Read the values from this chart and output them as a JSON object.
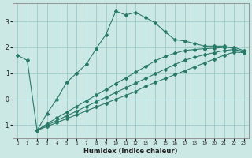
{
  "xlabel": "Humidex (Indice chaleur)",
  "bg_color": "#cce8e4",
  "line_color": "#2a7a6a",
  "grid_color": "#99cccc",
  "series1_x": [
    0,
    1,
    2,
    3,
    4,
    5,
    6,
    7,
    8,
    9,
    10,
    11,
    12,
    13,
    14,
    15,
    16,
    17,
    18,
    19,
    20,
    21,
    22,
    23
  ],
  "series1_y": [
    1.7,
    1.5,
    -1.2,
    -0.55,
    0.0,
    0.65,
    1.0,
    1.35,
    1.95,
    2.5,
    3.4,
    3.25,
    3.35,
    3.15,
    2.95,
    2.6,
    2.3,
    2.25,
    2.15,
    2.05,
    2.05,
    2.05,
    1.95,
    1.8
  ],
  "fan1_x": [
    2,
    3,
    4,
    5,
    6,
    7,
    8,
    9,
    10,
    11,
    12,
    13,
    14,
    15,
    16,
    17,
    18,
    19,
    20,
    21,
    22,
    23
  ],
  "fan1_y": [
    -1.2,
    -1.05,
    -0.9,
    -0.75,
    -0.6,
    -0.45,
    -0.3,
    -0.15,
    0.0,
    0.15,
    0.3,
    0.5,
    0.65,
    0.8,
    0.95,
    1.1,
    1.25,
    1.4,
    1.55,
    1.7,
    1.82,
    1.8
  ],
  "fan2_x": [
    2,
    3,
    4,
    5,
    6,
    7,
    8,
    9,
    10,
    11,
    12,
    13,
    14,
    15,
    16,
    17,
    18,
    19,
    20,
    21,
    22,
    23
  ],
  "fan2_y": [
    -1.2,
    -1.0,
    -0.82,
    -0.64,
    -0.46,
    -0.28,
    -0.1,
    0.08,
    0.26,
    0.44,
    0.62,
    0.8,
    0.98,
    1.16,
    1.34,
    1.5,
    1.62,
    1.72,
    1.8,
    1.88,
    1.92,
    1.85
  ],
  "fan3_x": [
    2,
    3,
    4,
    5,
    6,
    7,
    8,
    9,
    10,
    11,
    12,
    13,
    14,
    15,
    16,
    17,
    18,
    19,
    20,
    21,
    22,
    23
  ],
  "fan3_y": [
    -1.2,
    -0.95,
    -0.72,
    -0.5,
    -0.28,
    -0.06,
    0.16,
    0.38,
    0.6,
    0.82,
    1.04,
    1.26,
    1.48,
    1.65,
    1.78,
    1.88,
    1.92,
    1.95,
    1.97,
    2.0,
    2.0,
    1.88
  ],
  "xlim": [
    -0.5,
    23.5
  ],
  "ylim": [
    -1.5,
    3.7
  ],
  "xticks": [
    0,
    1,
    2,
    3,
    4,
    5,
    6,
    7,
    8,
    9,
    10,
    11,
    12,
    13,
    14,
    15,
    16,
    17,
    18,
    19,
    20,
    21,
    22,
    23
  ],
  "yticks": [
    -1,
    0,
    1,
    2,
    3
  ]
}
